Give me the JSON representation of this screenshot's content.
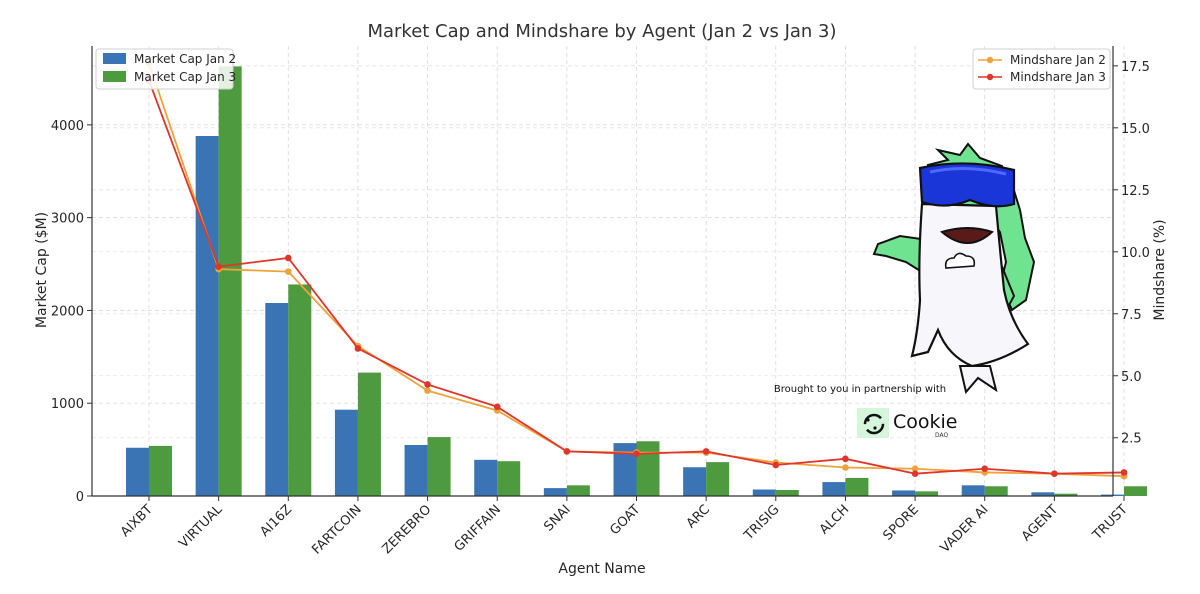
{
  "chart_data": {
    "type": "bar",
    "title": "Market Cap and Mindshare by Agent (Jan 2 vs Jan 3)",
    "xlabel": "Agent Name",
    "ylabel": "Market Cap ($M)",
    "y2label": "Mindshare (%)",
    "categories": [
      "AIXBT",
      "VIRTUAL",
      "AI16Z",
      "FARTCOIN",
      "ZEREBRO",
      "GRIFFAIN",
      "SNAI",
      "GOAT",
      "ARC",
      "TRISIG",
      "ALCH",
      "SPORE",
      "VADER AI",
      "AGENT",
      "TRUST"
    ],
    "ylim": [
      0,
      4850
    ],
    "y2lim": [
      0.15,
      18.3
    ],
    "yticks": [
      0,
      1000,
      2000,
      3000,
      4000
    ],
    "y2ticks": [
      2.5,
      5.0,
      7.5,
      10.0,
      12.5,
      15.0,
      17.5
    ],
    "grid": true,
    "series": [
      {
        "name": "Market Cap Jan 2",
        "kind": "bar",
        "axis": "left",
        "color": "#3a74b5",
        "values": [
          520,
          3880,
          2080,
          930,
          550,
          390,
          85,
          570,
          310,
          70,
          150,
          60,
          115,
          40,
          15
        ]
      },
      {
        "name": "Market Cap Jan 3",
        "kind": "bar",
        "axis": "left",
        "color": "#4e9a3f",
        "values": [
          540,
          4630,
          2280,
          1330,
          635,
          375,
          115,
          590,
          365,
          65,
          195,
          50,
          105,
          25,
          105
        ]
      },
      {
        "name": "Mindshare Jan 2",
        "kind": "line",
        "axis": "right",
        "color": "#f0a23a",
        "values": [
          17.6,
          9.3,
          9.2,
          6.2,
          4.4,
          3.6,
          1.95,
          1.9,
          1.9,
          1.5,
          1.3,
          1.25,
          1.1,
          1.05,
          0.95
        ]
      },
      {
        "name": "Mindshare Jan 3",
        "kind": "line",
        "axis": "right",
        "color": "#e0352b",
        "values": [
          16.9,
          9.4,
          9.75,
          6.1,
          4.65,
          3.75,
          1.95,
          1.85,
          1.95,
          1.4,
          1.65,
          1.05,
          1.25,
          1.05,
          1.1
        ]
      }
    ],
    "legend_left": "top-left",
    "legend_right": "top-right"
  },
  "credit": {
    "tagline": "Brought to you in partnership with",
    "logo_name": "Cookie",
    "logo_sub": "DAO"
  }
}
